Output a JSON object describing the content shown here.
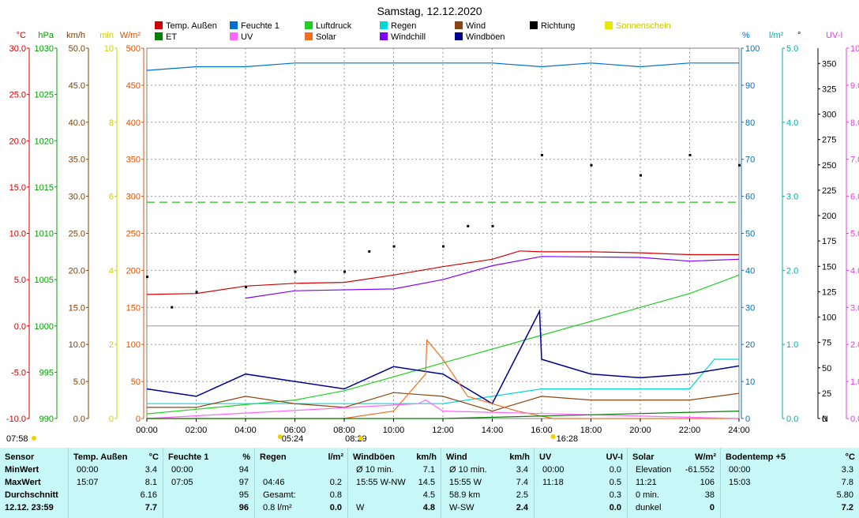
{
  "title": "Samstag, 12.12.2020",
  "legend": [
    {
      "label": "Temp. Außen",
      "color": "#d00000"
    },
    {
      "label": "Feuchte 1",
      "color": "#0070d0"
    },
    {
      "label": "Luftdruck",
      "color": "#20d020"
    },
    {
      "label": "Regen",
      "color": "#00d8d8"
    },
    {
      "label": "Wind",
      "color": "#8b4513"
    },
    {
      "label": "Richtung",
      "color": "#000000"
    },
    {
      "label": "Sonnenschein",
      "color": "#e8e800"
    },
    {
      "label": "ET",
      "color": "#008000"
    },
    {
      "label": "UV",
      "color": "#ff66ff"
    },
    {
      "label": "Solar",
      "color": "#f07020"
    },
    {
      "label": "Windchill",
      "color": "#8000ff"
    },
    {
      "label": "Windböen",
      "color": "#000090"
    }
  ],
  "axes": [
    {
      "unit": "°C",
      "color": "#d00000",
      "ticks": [
        "30.0",
        "25.0",
        "20.0",
        "15.0",
        "10.0",
        "5.0",
        "0.0",
        "-5.0",
        "-10.0"
      ]
    },
    {
      "unit": "hPa",
      "color": "#00a000",
      "ticks": [
        "1030",
        "1025",
        "1020",
        "1015",
        "1010",
        "1005",
        "1000",
        "995",
        "990"
      ]
    },
    {
      "unit": "km/h",
      "color": "#804000",
      "ticks": [
        "50.0",
        "45.0",
        "40.0",
        "35.0",
        "30.0",
        "25.0",
        "20.0",
        "15.0",
        "10.0",
        "5.0",
        "0.0"
      ]
    },
    {
      "unit": "min",
      "color": "#d0d000",
      "ticks": [
        "10",
        "8",
        "6",
        "4",
        "2",
        "0"
      ]
    },
    {
      "unit": "W/m²",
      "color": "#e05000",
      "ticks": [
        "500",
        "450",
        "400",
        "350",
        "300",
        "250",
        "200",
        "150",
        "100",
        "50",
        "0"
      ]
    },
    {
      "unit": "%",
      "color": "#0070c0",
      "ticks": [
        "100",
        "90",
        "80",
        "70",
        "60",
        "50",
        "40",
        "30",
        "20",
        "10",
        "0"
      ]
    },
    {
      "unit": "l/m²",
      "color": "#00b0b0",
      "ticks": [
        "5.0",
        "4.0",
        "3.0",
        "2.0",
        "1.0",
        "0.0"
      ]
    },
    {
      "unit": "°",
      "color": "#000000",
      "ticks": [
        "350",
        "325",
        "300",
        "275",
        "250",
        "225",
        "200",
        "175",
        "150",
        "125",
        "100",
        "75",
        "50",
        "25",
        "0"
      ],
      "extra": "N"
    },
    {
      "unit": "UV-I",
      "color": "#e040e0",
      "ticks": [
        "10.0",
        "9.0",
        "8.0",
        "7.0",
        "6.0",
        "5.0",
        "4.0",
        "3.0",
        "2.0",
        "1.0",
        "0.0"
      ]
    }
  ],
  "x_ticks": [
    "00:00",
    "02:00",
    "04:00",
    "06:00",
    "08:00",
    "10:00",
    "12:00",
    "14:00",
    "16:00",
    "18:00",
    "20:00",
    "22:00",
    "24:00"
  ],
  "sun_marks": {
    "left": "07:58",
    "sunrise": "05:24",
    "sunrise2": "08:29",
    "sunset": "16:28"
  },
  "chart_data": {
    "type": "line",
    "title": "Samstag, 12.12.2020",
    "x_range": [
      "00:00",
      "24:00"
    ],
    "grid": true,
    "series": [
      {
        "name": "Temp. Außen",
        "unit": "°C",
        "x": [
          "00:00",
          "02:00",
          "04:00",
          "06:00",
          "08:00",
          "10:00",
          "12:00",
          "14:00",
          "15:07",
          "16:00",
          "18:00",
          "20:00",
          "22:00",
          "24:00"
        ],
        "values": [
          3.4,
          3.5,
          4.3,
          4.6,
          4.7,
          5.5,
          6.4,
          7.2,
          8.1,
          8.0,
          8.0,
          7.9,
          7.7,
          7.7
        ]
      },
      {
        "name": "Feuchte 1",
        "unit": "%",
        "x": [
          "00:00",
          "02:00",
          "04:00",
          "06:00",
          "08:00",
          "10:00",
          "12:00",
          "14:00",
          "16:00",
          "18:00",
          "20:00",
          "22:00",
          "24:00"
        ],
        "values": [
          94,
          95,
          95,
          96,
          96,
          96,
          96,
          96,
          95,
          96,
          95,
          96,
          96
        ]
      },
      {
        "name": "Luftdruck",
        "unit": "hPa",
        "x": [
          "00:00",
          "02:00",
          "04:00",
          "06:00",
          "08:00",
          "10:00",
          "12:00",
          "14:00",
          "16:00",
          "18:00",
          "20:00",
          "22:00",
          "24:00"
        ],
        "values": [
          990.5,
          991.0,
          991.5,
          992.0,
          993.0,
          994.5,
          996.0,
          997.5,
          999.0,
          1000.5,
          1002.0,
          1003.5,
          1005.5
        ]
      },
      {
        "name": "Regen",
        "unit": "l/m²",
        "x": [
          "00:00",
          "04:46",
          "06:00",
          "12:00",
          "16:00",
          "22:00",
          "23:00",
          "24:00"
        ],
        "values": [
          0.2,
          0.2,
          0.2,
          0.2,
          0.4,
          0.4,
          0.8,
          0.8
        ]
      },
      {
        "name": "Wind",
        "unit": "km/h",
        "x": [
          "00:00",
          "02:00",
          "04:00",
          "06:00",
          "08:00",
          "10:00",
          "12:00",
          "14:00",
          "16:00",
          "18:00",
          "20:00",
          "22:00",
          "24:00"
        ],
        "values": [
          1.5,
          1.5,
          3.0,
          2.0,
          1.5,
          3.5,
          3.0,
          1.0,
          3.0,
          2.5,
          2.5,
          2.5,
          3.4
        ]
      },
      {
        "name": "Windböen",
        "unit": "km/h",
        "x": [
          "00:00",
          "02:00",
          "04:00",
          "06:00",
          "08:00",
          "10:00",
          "12:00",
          "14:00",
          "15:55",
          "16:00",
          "18:00",
          "20:00",
          "22:00",
          "24:00"
        ],
        "values": [
          4.0,
          3.0,
          6.0,
          5.0,
          4.0,
          7.0,
          6.0,
          2.0,
          14.5,
          8.0,
          6.0,
          5.5,
          6.0,
          7.1
        ]
      },
      {
        "name": "Richtung",
        "unit": "°",
        "type": "scatter",
        "x": [
          "00:00",
          "01:00",
          "02:00",
          "04:00",
          "06:00",
          "08:00",
          "09:00",
          "10:00",
          "12:00",
          "13:00",
          "14:00",
          "16:00",
          "18:00",
          "20:00",
          "22:00",
          "24:00"
        ],
        "values": [
          140,
          110,
          125,
          130,
          145,
          145,
          165,
          170,
          170,
          190,
          190,
          260,
          250,
          240,
          260,
          250
        ]
      },
      {
        "name": "Solar",
        "unit": "W/m²",
        "x": [
          "00:00",
          "07:58",
          "10:00",
          "11:18",
          "11:21",
          "12:00",
          "13:00",
          "14:00",
          "15:00",
          "16:28",
          "24:00"
        ],
        "values": [
          0,
          0,
          10,
          60,
          106,
          80,
          30,
          20,
          10,
          0,
          0
        ]
      },
      {
        "name": "UV",
        "unit": "UV-I",
        "x": [
          "00:00",
          "11:00",
          "11:18",
          "12:00",
          "24:00"
        ],
        "values": [
          0,
          0.4,
          0.5,
          0.2,
          0
        ]
      },
      {
        "name": "Windchill",
        "unit": "°C",
        "x": [
          "04:00",
          "06:00",
          "10:00",
          "12:00",
          "14:00",
          "16:00",
          "20:00",
          "22:00",
          "24:00"
        ],
        "values": [
          3.0,
          3.8,
          4.0,
          5.0,
          6.5,
          7.5,
          7.4,
          7.0,
          7.2
        ]
      },
      {
        "name": "ET",
        "unit": "l/m²",
        "x": [
          "00:00",
          "12:00",
          "24:00"
        ],
        "values": [
          0.0,
          0.0,
          0.1
        ]
      }
    ]
  },
  "table": {
    "row_labels": [
      "Sensor",
      "MinWert",
      "MaxWert",
      "Durchschnitt",
      "12.12.  23:59"
    ],
    "sections": [
      {
        "title": "Temp. Außen",
        "unit": "°C",
        "rows": [
          [
            "00:00",
            "3.4"
          ],
          [
            "15:07",
            "8.1"
          ],
          [
            "",
            "6.16"
          ],
          [
            "",
            "7.7"
          ]
        ]
      },
      {
        "title": "Feuchte 1",
        "unit": "%",
        "rows": [
          [
            "00:00",
            "94"
          ],
          [
            "07:05",
            "97"
          ],
          [
            "",
            "95"
          ],
          [
            "",
            "96"
          ]
        ]
      },
      {
        "title": "Regen",
        "unit": "l/m²",
        "rows": [
          [
            "",
            ""
          ],
          [
            "04:46",
            "0.2"
          ],
          [
            "Gesamt:",
            "0.8"
          ],
          [
            "0.8 l/m²",
            "0.0"
          ]
        ]
      },
      {
        "title": "Windböen",
        "unit": "km/h",
        "rows": [
          [
            "Ø 10 min.",
            "7.1"
          ],
          [
            "15:55    W-NW",
            "14.5"
          ],
          [
            "",
            "4.5"
          ],
          [
            "W",
            "4.8"
          ]
        ]
      },
      {
        "title": "Wind",
        "unit": "km/h",
        "rows": [
          [
            "Ø 10 min.",
            "3.4"
          ],
          [
            "15:55    W",
            "7.4"
          ],
          [
            "58.9 km",
            "2.5"
          ],
          [
            "W-SW",
            "2.4"
          ]
        ]
      },
      {
        "title": "UV",
        "unit": "UV-I",
        "rows": [
          [
            "00:00",
            "0.0"
          ],
          [
            "11:18",
            "0.5"
          ],
          [
            "",
            "0.3"
          ],
          [
            "",
            "0.0"
          ]
        ]
      },
      {
        "title": "Solar",
        "unit": "W/m²",
        "rows": [
          [
            "Elevation",
            "-61.552"
          ],
          [
            "11:21",
            "106"
          ],
          [
            "0 min.",
            "38"
          ],
          [
            "dunkel",
            "0"
          ]
        ]
      },
      {
        "title": "Bodentemp +5",
        "unit": "°C",
        "rows": [
          [
            "00:00",
            "3.3"
          ],
          [
            "15:03",
            "7.8"
          ],
          [
            "",
            "5.80"
          ],
          [
            "",
            "7.2"
          ]
        ]
      }
    ]
  }
}
